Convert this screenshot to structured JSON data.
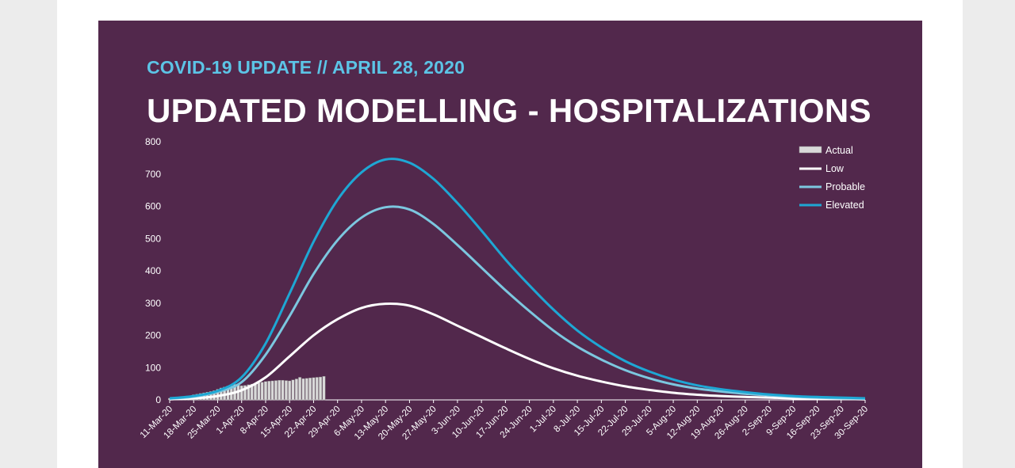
{
  "header": {
    "subtitle": "COVID-19 UPDATE // APRIL 28, 2020",
    "title": "UPDATED MODELLING - HOSPITALIZATIONS"
  },
  "colors": {
    "background": "#52284c",
    "actual": "#d9d9d9",
    "low": "#ffffff",
    "probable": "#7cc7df",
    "elevated": "#1ea7d4",
    "accent": "#5cc4e6"
  },
  "chart_data": {
    "type": "line",
    "ylim": [
      0,
      800
    ],
    "yticks": [
      0,
      100,
      200,
      300,
      400,
      500,
      600,
      700,
      800
    ],
    "xlim_days": [
      0,
      203
    ],
    "x_tick_labels": [
      "11-Mar-20",
      "18-Mar-20",
      "25-Mar-20",
      "1-Apr-20",
      "8-Apr-20",
      "15-Apr-20",
      "22-Apr-20",
      "29-Apr-20",
      "6-May-20",
      "13-May-20",
      "20-May-20",
      "27-May-20",
      "3-Jun-20",
      "10-Jun-20",
      "17-Jun-20",
      "24-Jun-20",
      "1-Jul-20",
      "8-Jul-20",
      "15-Jul-20",
      "22-Jul-20",
      "29-Jul-20",
      "5-Aug-20",
      "12-Aug-20",
      "19-Aug-20",
      "26-Aug-20",
      "2-Sep-20",
      "9-Sep-20",
      "16-Sep-20",
      "23-Sep-20",
      "30-Sep-20"
    ],
    "legend_position": "top-right",
    "grid": false,
    "actual": {
      "name": "Actual",
      "x": [
        "11-Mar-20",
        "12-Mar-20",
        "13-Mar-20",
        "14-Mar-20",
        "15-Mar-20",
        "16-Mar-20",
        "17-Mar-20",
        "18-Mar-20",
        "19-Mar-20",
        "20-Mar-20",
        "21-Mar-20",
        "22-Mar-20",
        "23-Mar-20",
        "24-Mar-20",
        "25-Mar-20",
        "26-Mar-20",
        "27-Mar-20",
        "28-Mar-20",
        "29-Mar-20",
        "30-Mar-20",
        "31-Mar-20",
        "1-Apr-20",
        "2-Apr-20",
        "3-Apr-20",
        "4-Apr-20",
        "5-Apr-20",
        "6-Apr-20",
        "7-Apr-20",
        "8-Apr-20",
        "9-Apr-20",
        "10-Apr-20",
        "11-Apr-20",
        "12-Apr-20",
        "13-Apr-20",
        "14-Apr-20",
        "15-Apr-20",
        "16-Apr-20",
        "17-Apr-20",
        "18-Apr-20",
        "19-Apr-20",
        "20-Apr-20",
        "21-Apr-20",
        "22-Apr-20",
        "23-Apr-20",
        "24-Apr-20",
        "25-Apr-20"
      ],
      "values": [
        5,
        6,
        7,
        8,
        9,
        11,
        13,
        16,
        18,
        20,
        22,
        24,
        26,
        29,
        33,
        37,
        40,
        43,
        46,
        48,
        46,
        44,
        45,
        47,
        49,
        51,
        53,
        55,
        57,
        58,
        59,
        60,
        61,
        61,
        60,
        59,
        62,
        65,
        70,
        66,
        67,
        68,
        69,
        70,
        71,
        73
      ]
    },
    "series": [
      {
        "name": "Low",
        "x": [
          "11-Mar-20",
          "18-Mar-20",
          "25-Mar-20",
          "1-Apr-20",
          "8-Apr-20",
          "15-Apr-20",
          "22-Apr-20",
          "29-Apr-20",
          "6-May-20",
          "13-May-20",
          "20-May-20",
          "27-May-20",
          "3-Jun-20",
          "10-Jun-20",
          "17-Jun-20",
          "24-Jun-20",
          "1-Jul-20",
          "8-Jul-20",
          "15-Jul-20",
          "22-Jul-20",
          "29-Jul-20",
          "5-Aug-20",
          "12-Aug-20",
          "19-Aug-20",
          "26-Aug-20",
          "2-Sep-20",
          "9-Sep-20",
          "16-Sep-20",
          "23-Sep-20",
          "30-Sep-20"
        ],
        "values": [
          2,
          5,
          12,
          30,
          70,
          135,
          200,
          250,
          285,
          298,
          292,
          265,
          230,
          195,
          160,
          127,
          98,
          75,
          57,
          42,
          31,
          22,
          16,
          12,
          9,
          7,
          5,
          4,
          3,
          2
        ]
      },
      {
        "name": "Probable",
        "x": [
          "11-Mar-20",
          "18-Mar-20",
          "25-Mar-20",
          "1-Apr-20",
          "8-Apr-20",
          "15-Apr-20",
          "22-Apr-20",
          "29-Apr-20",
          "6-May-20",
          "13-May-20",
          "20-May-20",
          "27-May-20",
          "3-Jun-20",
          "10-Jun-20",
          "17-Jun-20",
          "24-Jun-20",
          "1-Jul-20",
          "8-Jul-20",
          "15-Jul-20",
          "22-Jul-20",
          "29-Jul-20",
          "5-Aug-20",
          "12-Aug-20",
          "19-Aug-20",
          "26-Aug-20",
          "2-Sep-20",
          "9-Sep-20",
          "16-Sep-20",
          "23-Sep-20",
          "30-Sep-20"
        ],
        "values": [
          4,
          10,
          25,
          55,
          140,
          260,
          390,
          495,
          565,
          597,
          590,
          545,
          480,
          410,
          340,
          275,
          215,
          165,
          125,
          92,
          67,
          48,
          35,
          26,
          19,
          14,
          10,
          7,
          5,
          4
        ]
      },
      {
        "name": "Elevated",
        "x": [
          "11-Mar-20",
          "18-Mar-20",
          "25-Mar-20",
          "1-Apr-20",
          "8-Apr-20",
          "15-Apr-20",
          "22-Apr-20",
          "29-Apr-20",
          "6-May-20",
          "13-May-20",
          "20-May-20",
          "27-May-20",
          "3-Jun-20",
          "10-Jun-20",
          "17-Jun-20",
          "24-Jun-20",
          "1-Jul-20",
          "8-Jul-20",
          "15-Jul-20",
          "22-Jul-20",
          "29-Jul-20",
          "5-Aug-20",
          "12-Aug-20",
          "19-Aug-20",
          "26-Aug-20",
          "2-Sep-20",
          "9-Sep-20",
          "16-Sep-20",
          "23-Sep-20",
          "30-Sep-20"
        ],
        "values": [
          5,
          12,
          28,
          70,
          175,
          330,
          490,
          620,
          705,
          745,
          735,
          685,
          610,
          525,
          435,
          355,
          280,
          215,
          163,
          120,
          88,
          63,
          45,
          33,
          24,
          17,
          12,
          9,
          7,
          5
        ]
      }
    ]
  }
}
